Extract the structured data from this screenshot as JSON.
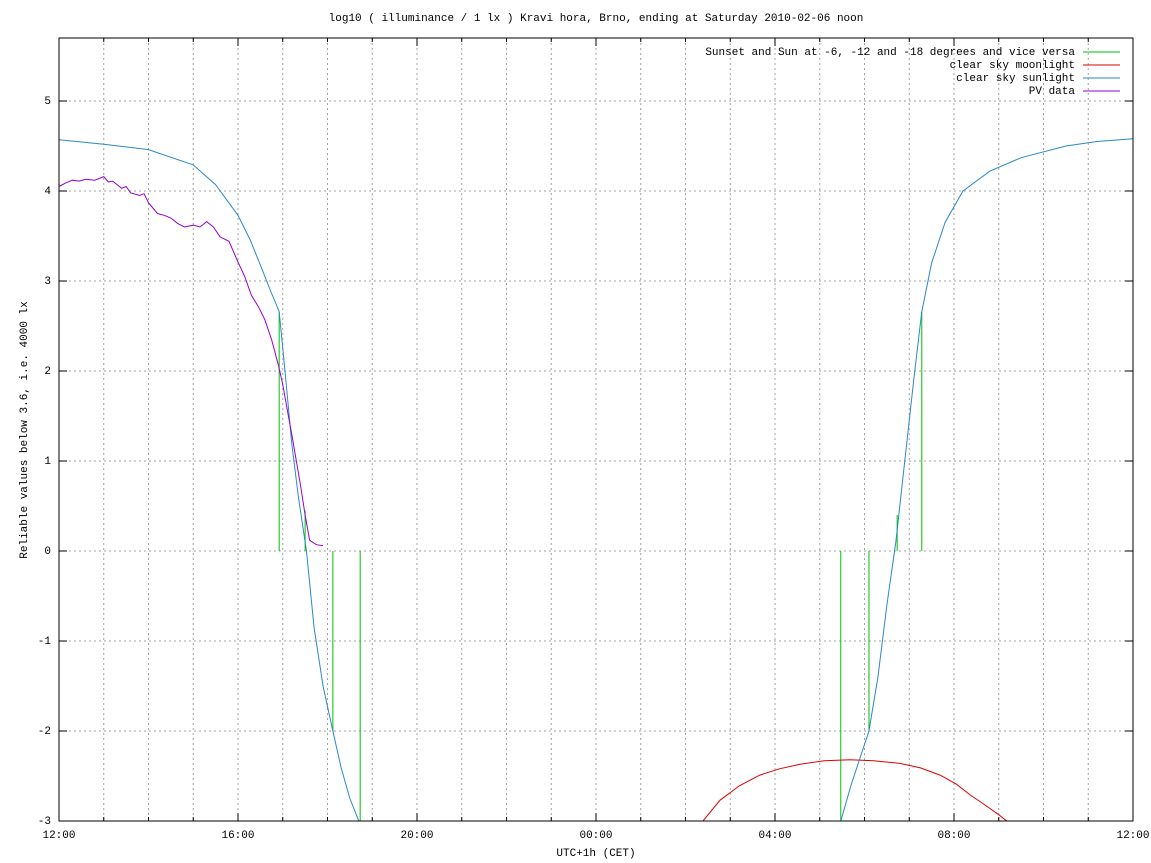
{
  "chart_data": {
    "type": "line",
    "title": "log10 ( illuminance / 1 lx ) Kravi hora, Brno, ending at Saturday 2010-02-06 noon",
    "xlabel": "UTC+1h (CET)",
    "ylabel": "Reliable values below 3.6, i.e. 4000 lx",
    "xlim": [
      0,
      24
    ],
    "ylim": [
      -3,
      5.7
    ],
    "xticks": [
      {
        "value": 0,
        "label": "12:00"
      },
      {
        "value": 4,
        "label": "16:00"
      },
      {
        "value": 8,
        "label": "20:00"
      },
      {
        "value": 12,
        "label": "00:00"
      },
      {
        "value": 16,
        "label": "04:00"
      },
      {
        "value": 20,
        "label": "08:00"
      },
      {
        "value": 24,
        "label": "12:00"
      }
    ],
    "xminorticks": [
      1,
      2,
      3,
      5,
      6,
      7,
      9,
      10,
      11,
      13,
      14,
      15,
      17,
      18,
      19,
      21,
      22,
      23
    ],
    "yticks": [
      -3,
      -2,
      -1,
      0,
      1,
      2,
      3,
      4,
      5
    ],
    "grid": true,
    "legend": "top-right",
    "series": [
      {
        "name": "Sunset and Sun at -6, -12 and -18 degrees and vice versa",
        "color": "#00c000",
        "style": "impulses",
        "x": [
          4.92,
          5.5,
          6.12,
          6.73,
          17.47,
          18.1,
          18.73,
          19.28
        ],
        "values": [
          2.66,
          0.45,
          -2,
          -3,
          -3,
          -2,
          0.4,
          2.66
        ]
      },
      {
        "name": "clear sky moonlight",
        "color": "#e00000",
        "style": "lines",
        "x": [
          14.39,
          14.77,
          15.2,
          15.66,
          16.1,
          16.56,
          17.1,
          17.68,
          18.2,
          18.79,
          19.25,
          19.69,
          20.05,
          20.36,
          20.6,
          20.8,
          21.0,
          21.18
        ],
        "values": [
          -3,
          -2.77,
          -2.61,
          -2.49,
          -2.42,
          -2.37,
          -2.33,
          -2.32,
          -2.33,
          -2.36,
          -2.41,
          -2.49,
          -2.59,
          -2.71,
          -2.79,
          -2.86,
          -2.93,
          -3
        ]
      },
      {
        "name": "clear sky sunlight",
        "color": "#2a88c8",
        "style": "lines",
        "x": [
          0,
          1,
          2,
          3,
          3.5,
          4,
          4.27,
          4.53,
          4.72,
          4.92,
          5.05,
          5.2,
          5.35,
          5.53,
          5.7,
          5.9,
          6.12,
          6.3,
          6.5,
          6.7,
          12,
          17.47,
          17.7,
          17.9,
          18.1,
          18.3,
          18.5,
          18.7,
          18.9,
          19.1,
          19.28,
          19.5,
          19.8,
          20.2,
          20.8,
          21.5,
          22.5,
          23.2,
          24
        ],
        "values": [
          4.57,
          4.52,
          4.46,
          4.29,
          4.07,
          3.73,
          3.46,
          3.14,
          2.9,
          2.66,
          2.0,
          1.2,
          0.6,
          0,
          -0.85,
          -1.5,
          -2.0,
          -2.4,
          -2.75,
          -3,
          null,
          -3,
          -2.6,
          -2.3,
          -2.0,
          -1.4,
          -0.6,
          0.1,
          1.0,
          1.9,
          2.66,
          3.2,
          3.65,
          4.0,
          4.22,
          4.37,
          4.5,
          4.55,
          4.58
        ]
      },
      {
        "name": "PV data",
        "color": "#9400d3",
        "style": "lines",
        "x": [
          0,
          0.15,
          0.3,
          0.45,
          0.6,
          0.8,
          1.0,
          1.1,
          1.2,
          1.4,
          1.5,
          1.6,
          1.8,
          1.9,
          2.0,
          2.2,
          2.35,
          2.5,
          2.65,
          2.8,
          3.0,
          3.15,
          3.3,
          3.45,
          3.6,
          3.8,
          4.0,
          4.15,
          4.3,
          4.45,
          4.6,
          4.75,
          4.9,
          5.0,
          5.1,
          5.2,
          5.3,
          5.4,
          5.5,
          5.6,
          5.75,
          5.9
        ],
        "values": [
          4.05,
          4.09,
          4.12,
          4.11,
          4.13,
          4.12,
          4.16,
          4.1,
          4.11,
          4.03,
          4.05,
          3.98,
          3.95,
          3.97,
          3.87,
          3.75,
          3.73,
          3.7,
          3.64,
          3.6,
          3.62,
          3.6,
          3.66,
          3.6,
          3.49,
          3.44,
          3.21,
          3.05,
          2.84,
          2.72,
          2.57,
          2.35,
          2.07,
          1.85,
          1.57,
          1.3,
          1.01,
          0.72,
          0.4,
          0.12,
          0.07,
          0.06
        ]
      }
    ]
  }
}
